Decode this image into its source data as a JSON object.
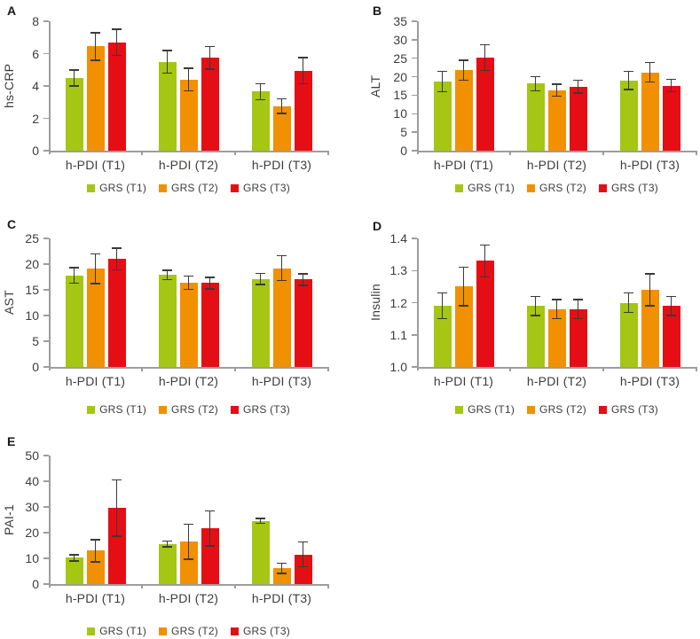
{
  "style": {
    "series_colors": [
      "#a5c613",
      "#f19001",
      "#e60e15"
    ],
    "axis_color": "#9d9d9c",
    "error_color": "#3a3a39",
    "text_color": "#3c3c3b",
    "background": "#ffffff"
  },
  "chart_data": [
    {
      "panel_label": "A",
      "type": "bar",
      "title": "",
      "xlabel": "",
      "ylabel": "hs-CRP",
      "ylim": [
        0,
        8
      ],
      "yticks": [
        "0",
        "2",
        "4",
        "6",
        "8"
      ],
      "grid": false,
      "legend_position": "bottom",
      "categories": [
        "h-PDI (T1)",
        "h-PDI (T2)",
        "h-PDI (T3)"
      ],
      "series": [
        {
          "name": "GRS (T1)",
          "values": [
            4.5,
            5.5,
            3.65
          ],
          "errors": [
            0.5,
            0.7,
            0.5
          ]
        },
        {
          "name": "GRS (T2)",
          "values": [
            6.45,
            4.4,
            2.75
          ],
          "errors": [
            0.85,
            0.7,
            0.45
          ]
        },
        {
          "name": "GRS (T3)",
          "values": [
            6.7,
            5.75,
            4.95
          ],
          "errors": [
            0.8,
            0.7,
            0.8
          ]
        }
      ]
    },
    {
      "panel_label": "B",
      "type": "bar",
      "title": "",
      "xlabel": "",
      "ylabel": "ALT",
      "ylim": [
        0,
        35
      ],
      "yticks": [
        "0",
        "5",
        "10",
        "15",
        "20",
        "25",
        "30",
        "35"
      ],
      "grid": false,
      "legend_position": "bottom",
      "categories": [
        "h-PDI (T1)",
        "h-PDI (T2)",
        "h-PDI (T3)"
      ],
      "series": [
        {
          "name": "GRS (T1)",
          "values": [
            18.7,
            18.1,
            19.0
          ],
          "errors": [
            2.7,
            1.9,
            2.4
          ]
        },
        {
          "name": "GRS (T2)",
          "values": [
            21.8,
            16.4,
            21.2
          ],
          "errors": [
            2.7,
            1.6,
            2.6
          ]
        },
        {
          "name": "GRS (T3)",
          "values": [
            25.2,
            17.3,
            17.6
          ],
          "errors": [
            3.5,
            1.7,
            1.7
          ]
        }
      ]
    },
    {
      "panel_label": "C",
      "type": "bar",
      "title": "",
      "xlabel": "",
      "ylabel": "AST",
      "ylim": [
        0,
        25
      ],
      "yticks": [
        "0",
        "5",
        "10",
        "15",
        "20",
        "25"
      ],
      "grid": false,
      "legend_position": "bottom",
      "categories": [
        "h-PDI (T1)",
        "h-PDI (T2)",
        "h-PDI (T3)"
      ],
      "series": [
        {
          "name": "GRS (T1)",
          "values": [
            17.8,
            17.9,
            17.1
          ],
          "errors": [
            1.5,
            0.9,
            1.1
          ]
        },
        {
          "name": "GRS (T2)",
          "values": [
            19.1,
            16.4,
            19.2
          ],
          "errors": [
            2.9,
            1.3,
            2.4
          ]
        },
        {
          "name": "GRS (T3)",
          "values": [
            21.0,
            16.3,
            17.0
          ],
          "errors": [
            2.1,
            1.1,
            1.1
          ]
        }
      ]
    },
    {
      "panel_label": "D",
      "type": "bar",
      "title": "",
      "xlabel": "",
      "ylabel": "Insulin",
      "ylim": [
        1.0,
        1.4
      ],
      "yticks": [
        "1.0",
        "1.1",
        "1.2",
        "1.3",
        "1.4"
      ],
      "grid": false,
      "legend_position": "bottom",
      "categories": [
        "h-PDI (T1)",
        "h-PDI (T2)",
        "h-PDI (T3)"
      ],
      "series": [
        {
          "name": "GRS (T1)",
          "values": [
            1.19,
            1.19,
            1.2
          ],
          "errors": [
            0.04,
            0.03,
            0.03
          ]
        },
        {
          "name": "GRS (T2)",
          "values": [
            1.25,
            1.18,
            1.24
          ],
          "errors": [
            0.06,
            0.03,
            0.05
          ]
        },
        {
          "name": "GRS (T3)",
          "values": [
            1.33,
            1.18,
            1.19
          ],
          "errors": [
            0.05,
            0.03,
            0.03
          ]
        }
      ]
    },
    {
      "panel_label": "E",
      "type": "bar",
      "title": "",
      "xlabel": "",
      "ylabel": "PAI-1",
      "ylim": [
        0,
        50
      ],
      "yticks": [
        "0",
        "10",
        "20",
        "30",
        "40",
        "50"
      ],
      "grid": false,
      "legend_position": "bottom",
      "categories": [
        "h-PDI (T1)",
        "h-PDI (T2)",
        "h-PDI (T3)"
      ],
      "series": [
        {
          "name": "GRS (T1)",
          "values": [
            10.2,
            15.6,
            24.6
          ],
          "errors": [
            1.2,
            1.2,
            1.0
          ]
        },
        {
          "name": "GRS (T2)",
          "values": [
            13.0,
            16.4,
            6.1
          ],
          "errors": [
            4.3,
            6.8,
            2.0
          ]
        },
        {
          "name": "GRS (T3)",
          "values": [
            29.6,
            21.6,
            11.5
          ],
          "errors": [
            11.0,
            6.8,
            4.8
          ]
        }
      ]
    }
  ]
}
